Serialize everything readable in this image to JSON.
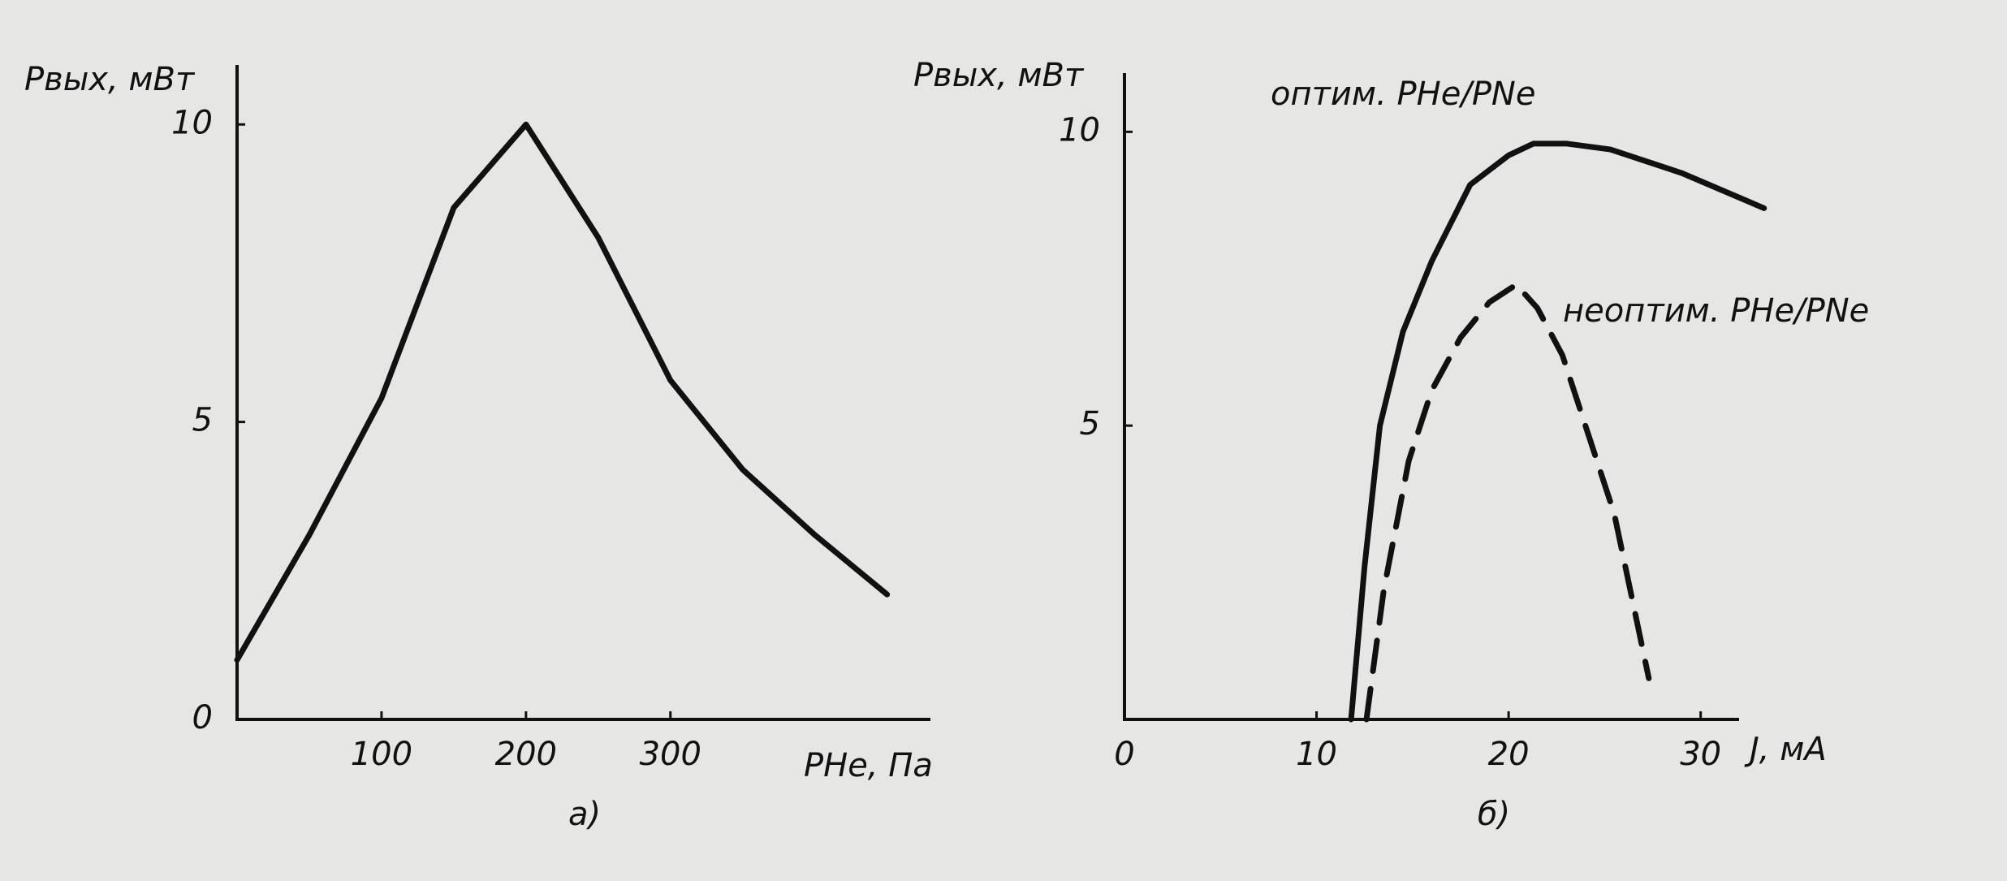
{
  "chart_data": [
    {
      "type": "line",
      "subtitle": "а)",
      "y_label": "Pвых, мВт",
      "x_label": "PHe, Па",
      "xlim": [
        0,
        480
      ],
      "ylim": [
        0,
        11
      ],
      "xticks": [
        100,
        200,
        300
      ],
      "yticks": [
        0,
        5,
        10
      ],
      "grid": false,
      "series": [
        {
          "color": "#111111",
          "dash": false,
          "x": [
            0,
            50,
            100,
            150,
            200,
            250,
            300,
            350,
            400,
            450
          ],
          "values": [
            1,
            3.1,
            5.4,
            8.6,
            10,
            8.1,
            5.7,
            4.2,
            3.1,
            2.1
          ]
        }
      ]
    },
    {
      "type": "line",
      "subtitle": "б)",
      "y_label": "Pвых, мВт",
      "x_label": "J, мА",
      "xlim": [
        0,
        32
      ],
      "ylim": [
        0,
        11
      ],
      "xticks": [
        0,
        10,
        20,
        30
      ],
      "yticks": [
        5,
        10
      ],
      "grid": false,
      "series": [
        {
          "name": "оптим. PHe/PNe",
          "color": "#111111",
          "dash": false,
          "x": [
            11.8,
            12.5,
            13.3,
            14.5,
            16,
            18,
            20,
            21.3,
            23,
            25.3,
            29,
            33.3
          ],
          "values": [
            0,
            2.6,
            5,
            6.6,
            7.8,
            9.1,
            9.6,
            9.8,
            9.8,
            9.7,
            9.3,
            8.7
          ]
        },
        {
          "name": "неоптим. PHe/PNe",
          "color": "#111111",
          "dash": true,
          "x": [
            12.6,
            13.5,
            14.8,
            16,
            17.5,
            19,
            20.4,
            21.5,
            22.8,
            24,
            25.5,
            27.3
          ],
          "values": [
            0,
            2.2,
            4.4,
            5.6,
            6.5,
            7.1,
            7.4,
            7.0,
            6.2,
            5.0,
            3.5,
            0.7
          ]
        }
      ]
    }
  ]
}
